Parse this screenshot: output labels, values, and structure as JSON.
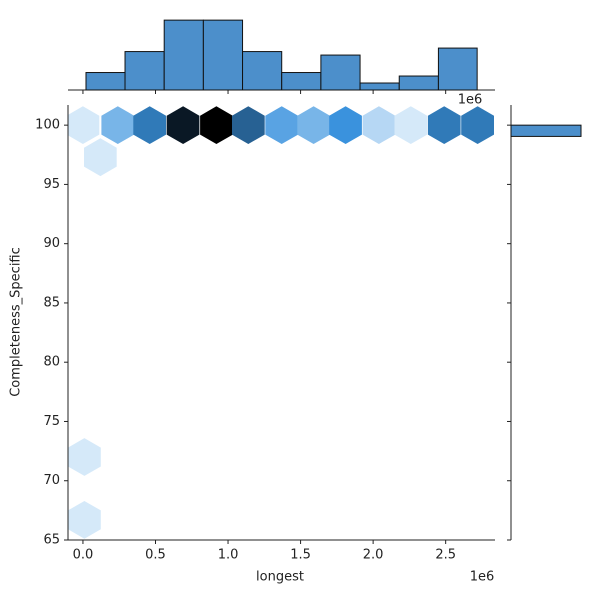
{
  "chart_data": [
    {
      "type": "hexbin",
      "x_label": "longest",
      "y_label": "Completeness_Specific",
      "x_offset_label": "1e6",
      "x": [
        0.0,
        0.24,
        0.46,
        0.69,
        0.92,
        1.14,
        1.37,
        1.59,
        1.81,
        2.04,
        2.26,
        2.49,
        2.72,
        0.12,
        0.01,
        0.01
      ],
      "y": [
        100,
        100,
        100,
        100,
        100,
        100,
        100,
        100,
        100,
        100,
        100,
        100,
        100,
        97.3,
        72,
        66.7
      ],
      "counts": [
        1,
        4,
        7,
        11,
        12,
        8,
        5,
        4,
        6,
        2,
        1,
        7,
        7,
        1,
        1,
        1
      ],
      "cmap": [
        "#f4faff",
        "#3a92dd",
        "#000000"
      ],
      "xlim": [
        -0.103,
        2.84
      ],
      "ylim": [
        65,
        101.7
      ],
      "xticks": [
        {
          "value": 0,
          "label": "0.0"
        },
        0.5,
        {
          "value": 1,
          "label": "1.0"
        },
        1.5,
        {
          "value": 2,
          "label": "2.0"
        },
        2.5
      ],
      "yticks": [
        65,
        70,
        75,
        80,
        85,
        90,
        95,
        100
      ]
    },
    {
      "type": "histogram",
      "orientation": "vertical",
      "color": "#4c8fcb",
      "bins": [
        0.021,
        0.29,
        0.56,
        0.83,
        1.1,
        1.37,
        1.64,
        1.91,
        2.18,
        2.45,
        2.717
      ],
      "counts": [
        5,
        11,
        20,
        20,
        11,
        5,
        10,
        2,
        4,
        12
      ],
      "ylim": [
        0,
        22.9
      ]
    },
    {
      "type": "histogram",
      "orientation": "horizontal",
      "color": "#4c8fcb",
      "bins": [
        99.05,
        100
      ],
      "counts": [
        100
      ],
      "xlim": [
        0,
        120
      ]
    }
  ]
}
